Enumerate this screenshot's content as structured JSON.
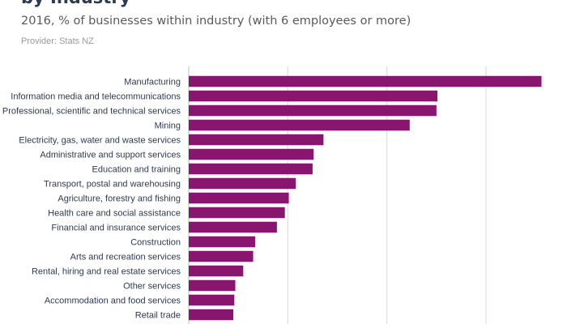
{
  "header": {
    "title": "by Industry",
    "subtitle": "2016, % of businesses within industry (with 6 employees or more)",
    "provider": "Provider: Stats NZ"
  },
  "colors": {
    "bar": "#88166e",
    "label": "#2d3a55",
    "grid": "#d9d9d9"
  },
  "chart_data": {
    "type": "bar",
    "orientation": "horizontal",
    "title": "by Industry",
    "subtitle": "2016, % of businesses within industry (with 6 employees or more)",
    "categories": [
      "Manufacturing",
      "Information media and telecommunications",
      "Professional, scientific and technical services",
      "Mining",
      "Electricity, gas, water and waste services",
      "Administrative and support services",
      "Education and training",
      "Transport, postal and warehousing",
      "Agriculture, forestry and fishing",
      "Health care and social assistance",
      "Financial and insurance services",
      "Construction",
      "Arts and recreation services",
      "Rental, hiring and real estate services",
      "Other services",
      "Accommodation and food services",
      "Retail trade"
    ],
    "values": [
      35.6,
      25.1,
      25.0,
      22.3,
      13.6,
      12.6,
      12.5,
      10.8,
      10.1,
      9.7,
      8.9,
      6.7,
      6.5,
      5.5,
      4.7,
      4.6,
      4.5
    ],
    "xlim": [
      0,
      37
    ],
    "grid_ticks": [
      0,
      10,
      20,
      30
    ],
    "grid": true,
    "legend": "none"
  }
}
